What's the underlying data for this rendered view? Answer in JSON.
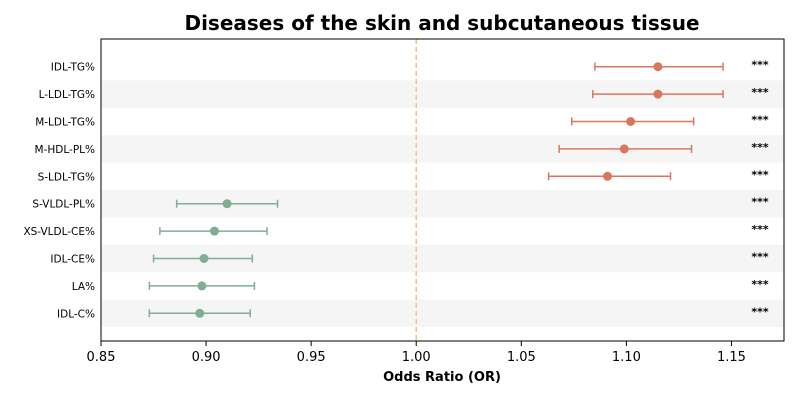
{
  "chart_data": {
    "type": "forest",
    "title": "Diseases of the skin and subcutaneous tissue",
    "xlabel": "Odds Ratio (OR)",
    "ylabel": "",
    "xlim": [
      0.85,
      1.175
    ],
    "xticks": [
      0.85,
      0.9,
      0.95,
      1.0,
      1.05,
      1.1,
      1.15
    ],
    "xtick_labels": [
      "0.85",
      "0.90",
      "0.95",
      "1.00",
      "1.05",
      "1.10",
      "1.15"
    ],
    "reference_line": 1.0,
    "categories": [
      "IDL-TG%",
      "L-LDL-TG%",
      "M-LDL-TG%",
      "M-HDL-PL%",
      "S-LDL-TG%",
      "S-VLDL-PL%",
      "XS-VLDL-CE%",
      "IDL-CE%",
      "LA%",
      "IDL-C%"
    ],
    "or": [
      1.115,
      1.115,
      1.102,
      1.099,
      1.091,
      0.91,
      0.904,
      0.899,
      0.898,
      0.897
    ],
    "ci_low": [
      1.085,
      1.084,
      1.074,
      1.068,
      1.063,
      0.886,
      0.878,
      0.875,
      0.873,
      0.873
    ],
    "ci_high": [
      1.146,
      1.146,
      1.132,
      1.131,
      1.121,
      0.934,
      0.929,
      0.922,
      0.923,
      0.921
    ],
    "significance": [
      "***",
      "***",
      "***",
      "***",
      "***",
      "***",
      "***",
      "***",
      "***",
      "***"
    ],
    "colors": {
      "positive": "#d9775e",
      "negative": "#7fae95",
      "reference": "#f5c17a",
      "stripe": "#f5f5f5"
    },
    "grid": false,
    "legend": "none"
  }
}
